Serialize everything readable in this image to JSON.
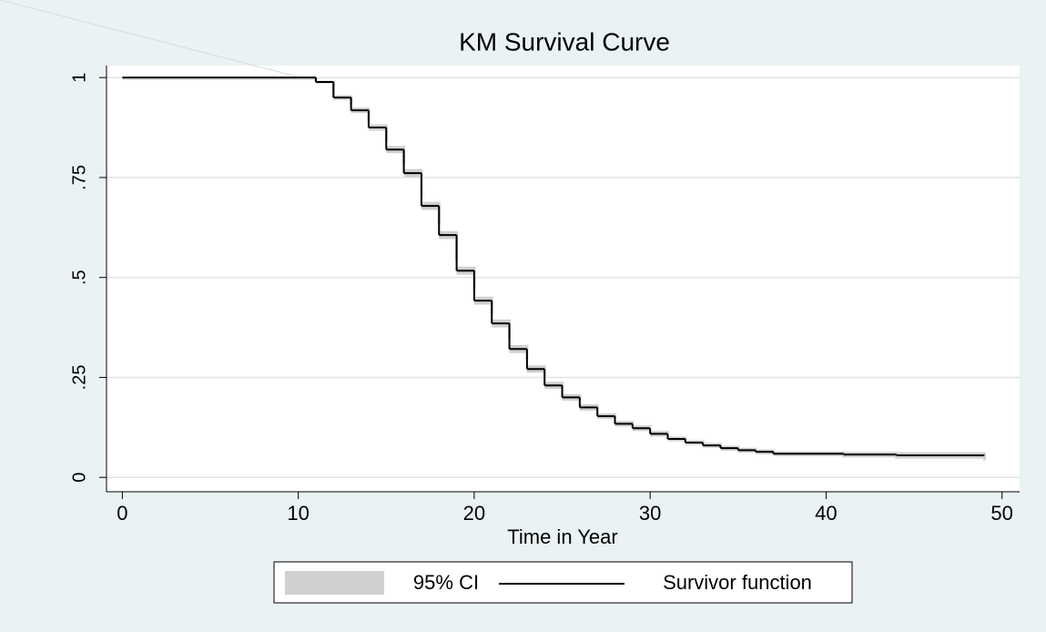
{
  "chart_data": {
    "type": "km_step",
    "title": "KM Survival Curve",
    "x_label": "Time in Year",
    "x": [
      0,
      11,
      12,
      13,
      14,
      15,
      16,
      17,
      18,
      19,
      20,
      21,
      22,
      23,
      24,
      25,
      26,
      27,
      28,
      29,
      30,
      31,
      32,
      33,
      34,
      35,
      36,
      37,
      41,
      44,
      49
    ],
    "series": [
      {
        "name": "95% CI",
        "color": "#d0d0d0",
        "lower": [
          1,
          0.985,
          0.944,
          0.911,
          0.867,
          0.811,
          0.751,
          0.669,
          0.596,
          0.507,
          0.432,
          0.375,
          0.311,
          0.262,
          0.221,
          0.192,
          0.167,
          0.146,
          0.127,
          0.116,
          0.102,
          0.09,
          0.081,
          0.074,
          0.067,
          0.062,
          0.058,
          0.053,
          0.05,
          0.047,
          0.047
        ],
        "upper": [
          1,
          0.992,
          0.956,
          0.925,
          0.883,
          0.829,
          0.771,
          0.689,
          0.616,
          0.527,
          0.452,
          0.395,
          0.331,
          0.28,
          0.239,
          0.208,
          0.183,
          0.16,
          0.141,
          0.13,
          0.116,
          0.102,
          0.093,
          0.086,
          0.079,
          0.074,
          0.07,
          0.065,
          0.064,
          0.063,
          0.063
        ]
      },
      {
        "name": "Survivor function",
        "color": "#000000",
        "values": [
          1,
          0.989,
          0.95,
          0.918,
          0.875,
          0.82,
          0.761,
          0.679,
          0.606,
          0.517,
          0.442,
          0.385,
          0.321,
          0.271,
          0.23,
          0.2,
          0.175,
          0.153,
          0.134,
          0.123,
          0.109,
          0.096,
          0.087,
          0.08,
          0.073,
          0.068,
          0.064,
          0.059,
          0.057,
          0.055,
          0.055
        ]
      }
    ],
    "xlim": [
      -0.9,
      51
    ],
    "ylim": [
      -0.036,
      1.03
    ],
    "xticks": [
      0,
      10,
      20,
      30,
      40,
      50
    ],
    "yticks": [
      0,
      {
        "value": 0.25,
        "label": ".25"
      },
      {
        "value": 0.5,
        "label": ".5"
      },
      {
        "value": 0.75,
        "label": ".75"
      },
      1
    ],
    "grid": true,
    "legend": "bottom"
  }
}
